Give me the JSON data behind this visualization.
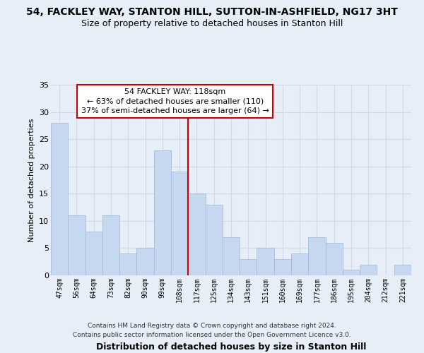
{
  "title": "54, FACKLEY WAY, STANTON HILL, SUTTON-IN-ASHFIELD, NG17 3HT",
  "subtitle": "Size of property relative to detached houses in Stanton Hill",
  "xlabel": "Distribution of detached houses by size in Stanton Hill",
  "ylabel": "Number of detached properties",
  "categories": [
    "47sqm",
    "56sqm",
    "64sqm",
    "73sqm",
    "82sqm",
    "90sqm",
    "99sqm",
    "108sqm",
    "117sqm",
    "125sqm",
    "134sqm",
    "143sqm",
    "151sqm",
    "160sqm",
    "169sqm",
    "177sqm",
    "186sqm",
    "195sqm",
    "204sqm",
    "212sqm",
    "221sqm"
  ],
  "values": [
    28,
    11,
    8,
    11,
    4,
    5,
    23,
    19,
    15,
    13,
    7,
    3,
    5,
    3,
    4,
    7,
    6,
    1,
    2,
    0,
    2
  ],
  "bar_color": "#c5d8f0",
  "bar_edge_color": "#a0b8d8",
  "grid_color": "#d0d8e8",
  "marker_line_color": "#cc0000",
  "annotation_text": "54 FACKLEY WAY: 118sqm\n← 63% of detached houses are smaller (110)\n37% of semi-detached houses are larger (64) →",
  "annotation_box_color": "#ffffff",
  "annotation_box_edge": "#cc0000",
  "footer": "Contains HM Land Registry data © Crown copyright and database right 2024.\nContains public sector information licensed under the Open Government Licence v3.0.",
  "ylim": [
    0,
    35
  ],
  "yticks": [
    0,
    5,
    10,
    15,
    20,
    25,
    30,
    35
  ],
  "bg_color": "#e8eef8",
  "plot_bg_color": "#e8eef8"
}
